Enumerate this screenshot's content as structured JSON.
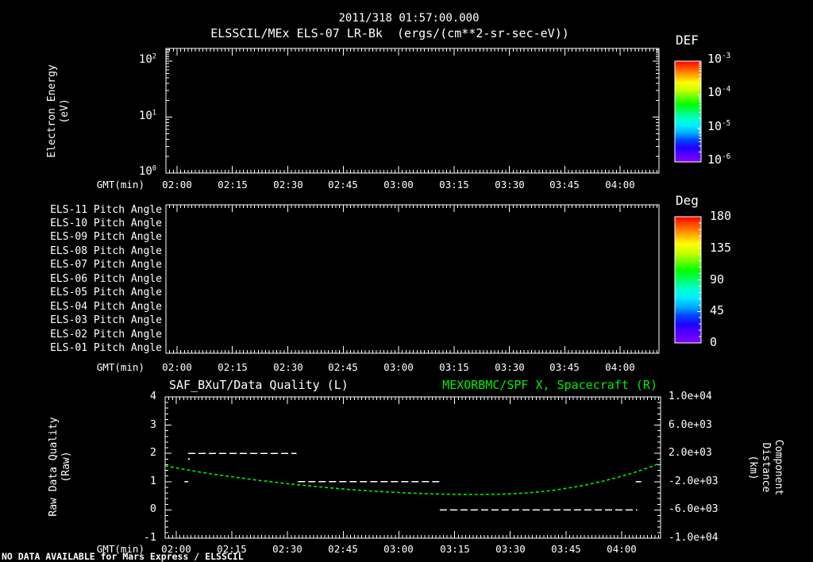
{
  "header": {
    "title_line1": "2011/318 01:57:00.000",
    "title_line2": "ELSSCIL/MEx ELS-07 LR-Bk  (ergs/(cm**2-sr-sec-eV))"
  },
  "footer": {
    "no_data_note": "NO DATA AVAILABLE for Mars Express / ELSSCIL"
  },
  "colors": {
    "background": "#000000",
    "foreground": "#ffffff",
    "accent_green": "#00ee00",
    "rainbow_bottom_to_top": [
      "#8800ff",
      "#5500ff",
      "#2200ff",
      "#0044ff",
      "#00aaff",
      "#00eeff",
      "#00ffcc",
      "#00ff66",
      "#00ff00",
      "#66ff00",
      "#ccff00",
      "#ffff00",
      "#ffaa00",
      "#ff5500",
      "#ff0000"
    ]
  },
  "time_axis": {
    "label": "GMT(min)",
    "ticks": [
      "02:00",
      "02:15",
      "02:30",
      "02:45",
      "03:00",
      "03:15",
      "03:30",
      "03:45",
      "04:00"
    ],
    "start_min": 117,
    "end_min": 250.5
  },
  "panels": {
    "spectrogram": {
      "y_label_line1": "Electron Energy",
      "y_label_line2": "(eV)",
      "y_ticks": [
        "10^2",
        "10^1",
        "10^0"
      ],
      "colorbar": {
        "title": "DEF",
        "ticks": [
          "10^-3",
          "10^-4",
          "10^-5",
          "10^-6"
        ]
      }
    },
    "pitch_angle": {
      "row_labels": [
        "ELS-11 Pitch Angle",
        "ELS-10 Pitch Angle",
        "ELS-09 Pitch Angle",
        "ELS-08 Pitch Angle",
        "ELS-07 Pitch Angle",
        "ELS-06 Pitch Angle",
        "ELS-05 Pitch Angle",
        "ELS-04 Pitch Angle",
        "ELS-03 Pitch Angle",
        "ELS-02 Pitch Angle",
        "ELS-01 Pitch Angle"
      ],
      "colorbar": {
        "title": "Deg",
        "ticks": [
          "180",
          "135",
          "90",
          "45",
          "0"
        ]
      }
    },
    "line_panel": {
      "title_left": "SAF_BXuT/Data Quality (L)",
      "title_right": "MEXORBMC/SPF X, Spacecraft (R)",
      "y_left_label_line1": "Raw Data Quality",
      "y_left_label_line2": "(Raw)",
      "y_left_ticks": [
        "4",
        "3",
        "2",
        "1",
        "0",
        "-1"
      ],
      "y_right_label_line1": "Component Distance",
      "y_right_label_line2": "(km)",
      "y_right_ticks": [
        "1.0e+04",
        "6.0e+03",
        "2.0e+03",
        "-2.0e+03",
        "-6.0e+03",
        "-1.0e+04"
      ]
    }
  },
  "chart_data": [
    {
      "type": "heatmap",
      "title": "ELSSCIL/MEx ELS-07 LR-Bk",
      "units": "ergs/(cm**2-sr-sec-eV)",
      "xlabel": "GMT(min)",
      "ylabel": "Electron Energy (eV)",
      "x_ticks": [
        "02:00",
        "02:15",
        "02:30",
        "02:45",
        "03:00",
        "03:15",
        "03:30",
        "03:45",
        "04:00"
      ],
      "x_range_minutes": [
        117,
        250.5
      ],
      "y_scale": "log",
      "y_range_eV": [
        1,
        170
      ],
      "colorbar": {
        "label": "DEF",
        "scale": "log",
        "range": [
          1e-06,
          0.001
        ],
        "tick_labels": [
          "10^-3",
          "10^-4",
          "10^-5",
          "10^-6"
        ]
      },
      "values": [],
      "note": "panel is empty - no data available"
    },
    {
      "type": "heatmap",
      "rows": [
        "ELS-11 Pitch Angle",
        "ELS-10 Pitch Angle",
        "ELS-09 Pitch Angle",
        "ELS-08 Pitch Angle",
        "ELS-07 Pitch Angle",
        "ELS-06 Pitch Angle",
        "ELS-05 Pitch Angle",
        "ELS-04 Pitch Angle",
        "ELS-03 Pitch Angle",
        "ELS-02 Pitch Angle",
        "ELS-01 Pitch Angle"
      ],
      "xlabel": "GMT(min)",
      "x_ticks": [
        "02:00",
        "02:15",
        "02:30",
        "02:45",
        "03:00",
        "03:15",
        "03:30",
        "03:45",
        "04:00"
      ],
      "x_range_minutes": [
        117,
        250.5
      ],
      "colorbar": {
        "label": "Deg",
        "range": [
          0,
          180
        ],
        "tick_labels": [
          "180",
          "135",
          "90",
          "45",
          "0"
        ]
      },
      "values": [],
      "note": "panel is empty - no data available"
    },
    {
      "type": "line",
      "title_left": "SAF_BXuT/Data Quality (L)",
      "title_right": "MEXORBMC/SPF X, Spacecraft (R)",
      "xlabel": "GMT(min)",
      "x_ticks": [
        "02:00",
        "02:15",
        "02:30",
        "02:45",
        "03:00",
        "03:15",
        "03:30",
        "03:45",
        "04:00"
      ],
      "x_range_minutes": [
        117,
        250.5
      ],
      "y_left": {
        "label": "Raw Data Quality (Raw)",
        "range": [
          -1,
          4
        ],
        "ticks": [
          4,
          3,
          2,
          1,
          0,
          -1
        ]
      },
      "y_right": {
        "label": "Component Distance (km)",
        "range": [
          -10000,
          10000
        ],
        "ticks": [
          10000,
          6000,
          2000,
          -2000,
          -6000,
          -10000
        ]
      },
      "series": [
        {
          "name": "SAF_BXuT/Data Quality",
          "axis": "left",
          "style": "white-dashed-steps",
          "segments": [
            {
              "level": 1,
              "from_min": 122.2,
              "to_min": 123.2
            },
            {
              "level": 2,
              "from_min": 123.2,
              "to_min": 152.4
            },
            {
              "level": 1,
              "from_min": 152.8,
              "to_min": 191.0
            },
            {
              "level": 0,
              "from_min": 191.0,
              "to_min": 244.2
            },
            {
              "level": 1,
              "from_min": 243.8,
              "to_min": 245.3
            }
          ],
          "stray_points": [
            {
              "t_min": 123.4,
              "level": 1.8
            }
          ]
        },
        {
          "name": "MEXORBMC/SPF X Spacecraft",
          "axis": "right",
          "style": "green-dotted",
          "points_min_km": [
            [
              117,
              250
            ],
            [
              122,
              -250
            ],
            [
              127,
              -700
            ],
            [
              132,
              -1100
            ],
            [
              137,
              -1450
            ],
            [
              142,
              -1800
            ],
            [
              147,
              -2100
            ],
            [
              152,
              -2400
            ],
            [
              157,
              -2650
            ],
            [
              162,
              -2900
            ],
            [
              167,
              -3120
            ],
            [
              172,
              -3300
            ],
            [
              177,
              -3460
            ],
            [
              182,
              -3590
            ],
            [
              187,
              -3690
            ],
            [
              192,
              -3760
            ],
            [
              197,
              -3800
            ],
            [
              202,
              -3810
            ],
            [
              207,
              -3780
            ],
            [
              211,
              -3700
            ],
            [
              215,
              -3570
            ],
            [
              219,
              -3380
            ],
            [
              223,
              -3120
            ],
            [
              227,
              -2790
            ],
            [
              231,
              -2390
            ],
            [
              235,
              -1920
            ],
            [
              239,
              -1380
            ],
            [
              242,
              -930
            ],
            [
              245,
              -430
            ],
            [
              247,
              -60
            ],
            [
              249,
              330
            ],
            [
              250.5,
              700
            ]
          ]
        }
      ]
    }
  ]
}
